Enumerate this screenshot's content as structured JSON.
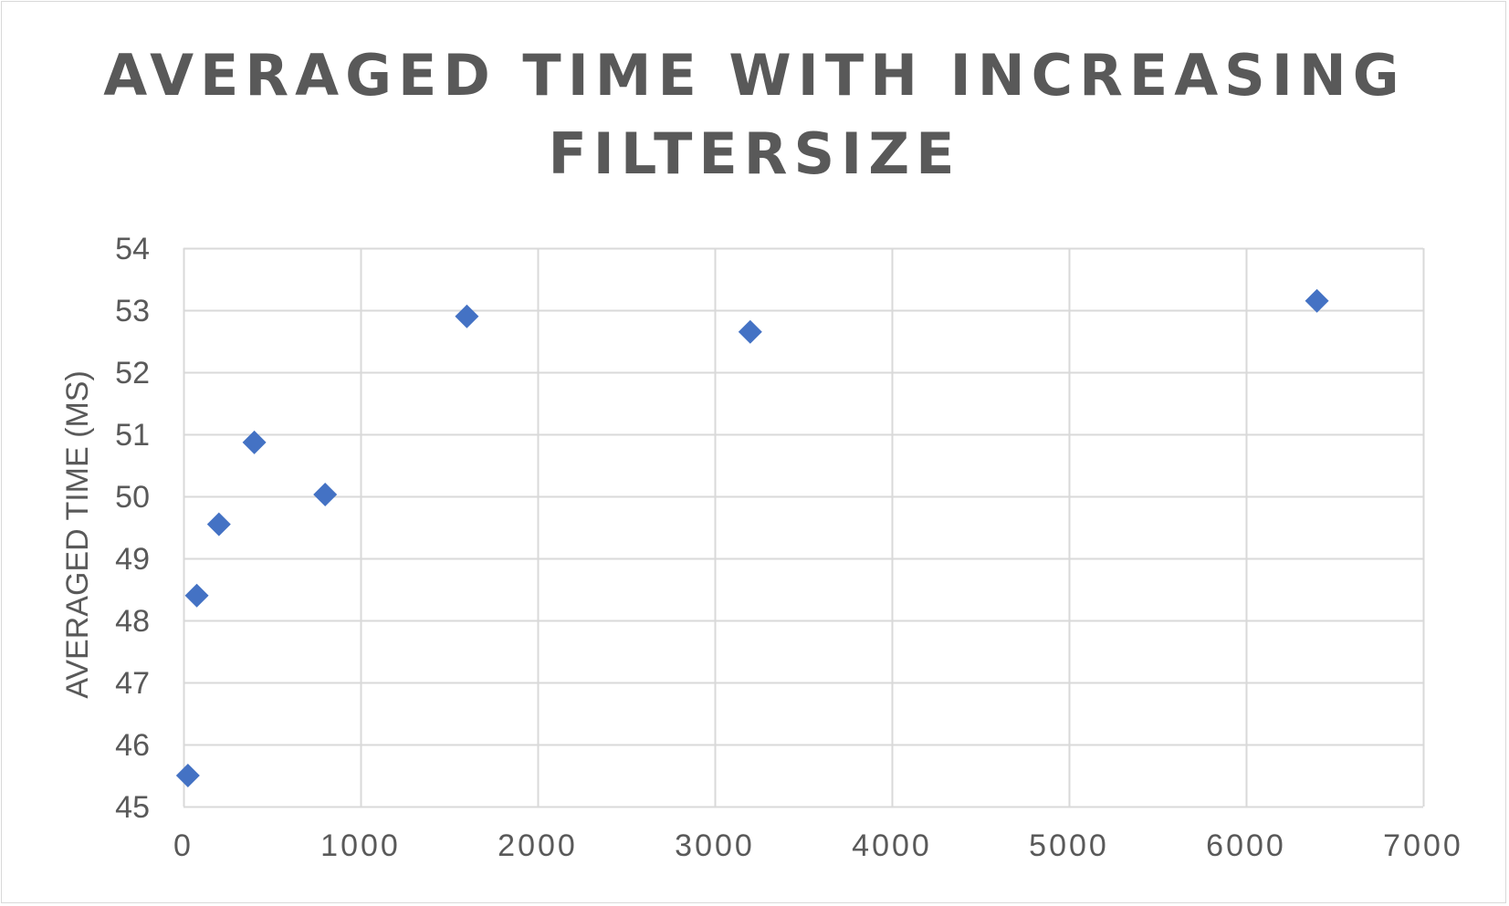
{
  "chart_data": {
    "type": "scatter",
    "title_lines": [
      "AVERAGED TIME WITH INCREASING",
      "FILTERSIZE"
    ],
    "xlabel": "",
    "ylabel": "AVERAGED TIME (MS)",
    "xlim": [
      0,
      7000
    ],
    "ylim": [
      45,
      54
    ],
    "xticks": [
      0,
      1000,
      2000,
      3000,
      4000,
      5000,
      6000,
      7000
    ],
    "yticks": [
      45,
      46,
      47,
      48,
      49,
      50,
      51,
      52,
      53,
      54
    ],
    "grid": true,
    "legend": "none",
    "marker": "diamond",
    "series": [
      {
        "color": "#4472c4",
        "points": [
          {
            "x": 25,
            "y": 45.5
          },
          {
            "x": 75,
            "y": 48.4
          },
          {
            "x": 200,
            "y": 49.55
          },
          {
            "x": 400,
            "y": 50.87
          },
          {
            "x": 800,
            "y": 50.03
          },
          {
            "x": 1600,
            "y": 52.9
          },
          {
            "x": 3200,
            "y": 52.65
          },
          {
            "x": 6400,
            "y": 53.15
          }
        ]
      }
    ],
    "colors": {
      "gridline": "#d9d9d9",
      "text": "#595959",
      "frame": "#d9d9d9"
    }
  }
}
